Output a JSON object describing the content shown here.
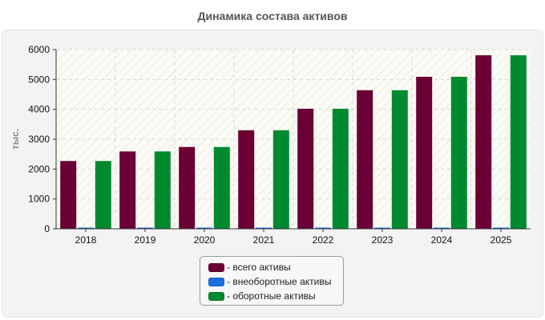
{
  "colors": {
    "total": "#6a0034",
    "noncurrent": "#1a6fe0",
    "current": "#008a30"
  },
  "chart_data": {
    "type": "bar",
    "title": "Динамика состава активов",
    "ylabel": "тыс.",
    "xlabel": "",
    "categories": [
      "2018",
      "2019",
      "2020",
      "2021",
      "2022",
      "2023",
      "2024",
      "2025"
    ],
    "ylim": [
      0,
      6000
    ],
    "yticks": [
      "0",
      "1000",
      "2000",
      "3000",
      "4000",
      "5000",
      "6000"
    ],
    "grid": true,
    "legend_position": "bottom-center",
    "series": [
      {
        "name": "всего активы",
        "color": "#6a0034",
        "values": [
          2270,
          2590,
          2740,
          3300,
          4020,
          4640,
          5090,
          5810
        ]
      },
      {
        "name": "внеоборотные активы",
        "color": "#1a6fe0",
        "values": [
          15,
          15,
          15,
          15,
          15,
          15,
          15,
          15
        ]
      },
      {
        "name": "оборотные активы",
        "color": "#008a30",
        "values": [
          2270,
          2590,
          2740,
          3300,
          4020,
          4640,
          5090,
          5810
        ]
      }
    ]
  },
  "legend": [
    {
      "label": "- всего активы",
      "color": "#6a0034"
    },
    {
      "label": "- внеоборотные активы",
      "color": "#1a6fe0"
    },
    {
      "label": "- оборотные активы",
      "color": "#008a30"
    }
  ]
}
